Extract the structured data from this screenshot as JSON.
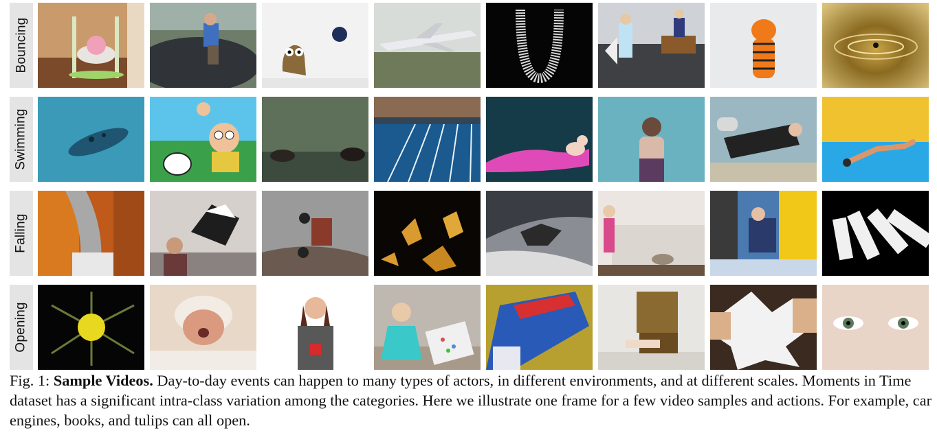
{
  "rows": [
    {
      "label": "Bouncing"
    },
    {
      "label": "Swimming"
    },
    {
      "label": "Falling"
    },
    {
      "label": "Opening"
    }
  ],
  "caption": {
    "prefix": "Fig. 1: ",
    "title": "Sample Videos.",
    "body": " Day-to-day events can happen to many types of actors, in different environments, and at different scales. Moments in Time dataset has a significant intra-class variation among the categories. Here we illustrate one frame for a few video samples and actions. For example, car engines, books, and tulips can all open."
  }
}
